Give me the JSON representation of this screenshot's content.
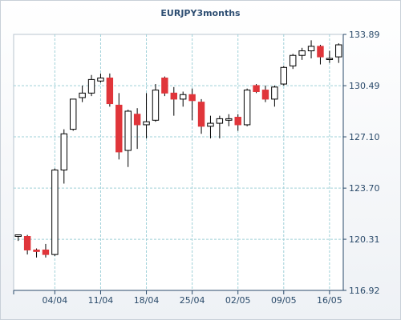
{
  "chart_data": {
    "type": "candlestick",
    "title": "EURJPY3months",
    "xlabel": "",
    "ylabel": "",
    "ylim": [
      116.92,
      133.89
    ],
    "y_ticks": [
      "133.89",
      "130.49",
      "127.10",
      "123.70",
      "120.31",
      "116.92"
    ],
    "x_ticks": [
      {
        "label": "04/04",
        "at": 4.5
      },
      {
        "label": "11/04",
        "at": 9.5
      },
      {
        "label": "18/04",
        "at": 14.5
      },
      {
        "label": "25/04",
        "at": 19.5
      },
      {
        "label": "02/05",
        "at": 24.5
      },
      {
        "label": "09/05",
        "at": 29.5
      },
      {
        "label": "16/05",
        "at": 34.5
      }
    ],
    "grid": true,
    "legend": "none",
    "colors": {
      "up": "#ffffff",
      "down": "#e0353a",
      "grid": "#9fd0d8",
      "axis": "#2a4a6a"
    },
    "candles": [
      {
        "o": 120.5,
        "h": 120.6,
        "l": 120.2,
        "c": 120.6
      },
      {
        "o": 120.5,
        "h": 120.6,
        "l": 119.3,
        "c": 119.6
      },
      {
        "o": 119.6,
        "h": 119.7,
        "l": 119.1,
        "c": 119.5
      },
      {
        "o": 119.6,
        "h": 120.0,
        "l": 119.1,
        "c": 119.3
      },
      {
        "o": 119.3,
        "h": 125.0,
        "l": 119.2,
        "c": 124.9
      },
      {
        "o": 124.9,
        "h": 127.6,
        "l": 124.0,
        "c": 127.3
      },
      {
        "o": 127.6,
        "h": 129.6,
        "l": 127.5,
        "c": 129.6
      },
      {
        "o": 129.7,
        "h": 130.5,
        "l": 129.4,
        "c": 130.0
      },
      {
        "o": 130.0,
        "h": 131.2,
        "l": 129.8,
        "c": 130.9
      },
      {
        "o": 130.8,
        "h": 131.3,
        "l": 130.7,
        "c": 131.0
      },
      {
        "o": 131.0,
        "h": 131.3,
        "l": 129.1,
        "c": 129.3
      },
      {
        "o": 129.2,
        "h": 130.0,
        "l": 125.6,
        "c": 126.1
      },
      {
        "o": 126.2,
        "h": 128.9,
        "l": 125.1,
        "c": 128.8
      },
      {
        "o": 128.6,
        "h": 129.0,
        "l": 126.3,
        "c": 127.9
      },
      {
        "o": 127.9,
        "h": 130.0,
        "l": 127.0,
        "c": 128.1
      },
      {
        "o": 128.2,
        "h": 130.6,
        "l": 128.1,
        "c": 130.2
      },
      {
        "o": 131.0,
        "h": 131.1,
        "l": 129.8,
        "c": 130.0
      },
      {
        "o": 130.0,
        "h": 130.4,
        "l": 128.5,
        "c": 129.6
      },
      {
        "o": 129.6,
        "h": 130.1,
        "l": 129.1,
        "c": 129.9
      },
      {
        "o": 129.9,
        "h": 130.3,
        "l": 128.2,
        "c": 129.5
      },
      {
        "o": 129.4,
        "h": 129.6,
        "l": 127.3,
        "c": 127.8
      },
      {
        "o": 127.8,
        "h": 128.5,
        "l": 127.0,
        "c": 128.0
      },
      {
        "o": 128.0,
        "h": 128.5,
        "l": 127.0,
        "c": 128.3
      },
      {
        "o": 128.2,
        "h": 128.6,
        "l": 127.8,
        "c": 128.3
      },
      {
        "o": 128.4,
        "h": 128.6,
        "l": 127.5,
        "c": 127.9
      },
      {
        "o": 127.9,
        "h": 130.3,
        "l": 127.8,
        "c": 130.2
      },
      {
        "o": 130.5,
        "h": 130.6,
        "l": 130.0,
        "c": 130.1
      },
      {
        "o": 130.2,
        "h": 130.5,
        "l": 129.4,
        "c": 129.6
      },
      {
        "o": 129.6,
        "h": 130.5,
        "l": 129.1,
        "c": 130.4
      },
      {
        "o": 130.6,
        "h": 131.8,
        "l": 130.5,
        "c": 131.7
      },
      {
        "o": 131.8,
        "h": 132.6,
        "l": 131.6,
        "c": 132.5
      },
      {
        "o": 132.5,
        "h": 133.0,
        "l": 132.2,
        "c": 132.8
      },
      {
        "o": 132.8,
        "h": 133.5,
        "l": 132.3,
        "c": 133.1
      },
      {
        "o": 133.1,
        "h": 133.2,
        "l": 131.9,
        "c": 132.4
      },
      {
        "o": 132.3,
        "h": 132.8,
        "l": 132.0,
        "c": 132.3
      },
      {
        "o": 132.4,
        "h": 133.3,
        "l": 132.0,
        "c": 133.2
      }
    ]
  }
}
